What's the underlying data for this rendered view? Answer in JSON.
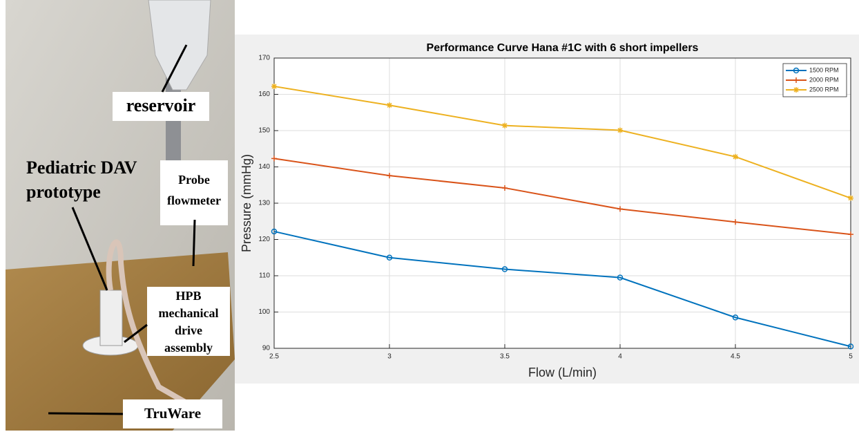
{
  "photo": {
    "labels": [
      {
        "lines": [
          "reservoir"
        ]
      },
      {
        "lines": [
          "Pediatric DAV",
          "prototype"
        ]
      },
      {
        "lines": [
          "Probe",
          "flowmeter"
        ]
      },
      {
        "lines": [
          "HPB",
          "mechanical",
          "drive",
          "assembly"
        ]
      },
      {
        "lines": [
          "TruWare"
        ]
      }
    ]
  },
  "chart_data": {
    "type": "line",
    "title": "Performance Curve Hana #1C with 6 short impellers",
    "x_label": "Flow (L/min)",
    "y_label": "Pressure (mmHg)",
    "x": [
      2.5,
      3,
      3.5,
      4,
      4.5,
      5
    ],
    "series": [
      {
        "name": "1500 RPM",
        "color": "#0072bd",
        "marker": "o",
        "values": [
          122.2,
          115,
          111.8,
          109.5,
          98.5,
          90.5
        ]
      },
      {
        "name": "2000 RPM",
        "color": "#d95319",
        "marker": "+",
        "values": [
          142.3,
          137.6,
          134.2,
          128.4,
          124.8,
          121.4
        ]
      },
      {
        "name": "2500 RPM",
        "color": "#edb120",
        "marker": "*",
        "values": [
          162.2,
          157,
          151.4,
          150.1,
          142.8,
          131.4
        ]
      }
    ],
    "xlim": [
      2.5,
      5
    ],
    "xticks": [
      2.5,
      3,
      3.5,
      4,
      4.5,
      5
    ],
    "ylim": [
      90,
      170
    ],
    "yticks": [
      90,
      100,
      110,
      120,
      130,
      140,
      150,
      160,
      170
    ],
    "grid": true,
    "legend": "top-right"
  }
}
